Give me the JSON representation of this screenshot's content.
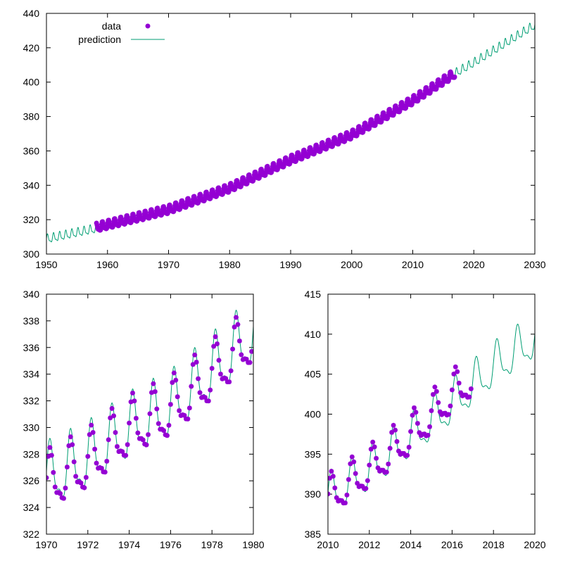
{
  "legend": {
    "data_label": "data",
    "prediction_label": "prediction",
    "position": "top-left"
  },
  "colors": {
    "data": "#9400d3",
    "prediction": "#009e73",
    "axes": "#000000",
    "background": "#ffffff"
  },
  "chart_data": [
    {
      "type": "line",
      "title": "",
      "xlabel": "",
      "ylabel": "",
      "xlim": [
        1950,
        2030
      ],
      "ylim": [
        300,
        440
      ],
      "grid": false,
      "x_ticks": [
        1950,
        1960,
        1970,
        1980,
        1990,
        2000,
        2010,
        2020,
        2030
      ],
      "y_ticks": [
        300,
        320,
        340,
        360,
        380,
        400,
        420,
        440
      ],
      "series": [
        {
          "name": "prediction",
          "style": "line",
          "x_range": [
            1950,
            2030
          ],
          "trend_points": [
            [
              1950,
              308.5
            ],
            [
              1958,
              314.5
            ],
            [
              1970,
              325.5
            ],
            [
              1980,
              338
            ],
            [
              1990,
              354.5
            ],
            [
              2000,
              369
            ],
            [
              2010,
              389
            ],
            [
              2017,
              405
            ],
            [
              2020,
              411
            ],
            [
              2030,
              433
            ]
          ],
          "seasonal_amplitude": 3.2
        },
        {
          "name": "data",
          "style": "points",
          "x_range": [
            1958.2,
            2016.9
          ],
          "trend_points": [
            [
              1958,
              315
            ],
            [
              1970,
              325.5
            ],
            [
              1980,
              338
            ],
            [
              1990,
              354.5
            ],
            [
              2000,
              369
            ],
            [
              2010,
              389
            ],
            [
              2017,
              405
            ]
          ],
          "seasonal_amplitude": 3.0
        }
      ]
    },
    {
      "type": "line",
      "title": "",
      "xlabel": "",
      "ylabel": "",
      "xlim": [
        1970,
        1980
      ],
      "ylim": [
        322,
        340
      ],
      "grid": false,
      "x_ticks": [
        1970,
        1972,
        1974,
        1976,
        1978,
        1980
      ],
      "y_ticks": [
        322,
        324,
        326,
        328,
        330,
        332,
        334,
        336,
        338,
        340
      ],
      "series": [
        {
          "name": "prediction",
          "style": "line",
          "x_range": [
            1970,
            1980
          ],
          "trend_points": [
            [
              1970,
              326.1
            ],
            [
              1972,
              327.6
            ],
            [
              1974,
              329.8
            ],
            [
              1976,
              331.4
            ],
            [
              1978,
              334.2
            ],
            [
              1980,
              337
            ]
          ],
          "seasonal_amplitude": 3.0
        },
        {
          "name": "data",
          "style": "points",
          "x_range": [
            1970.0,
            1979.96
          ],
          "trend_points": [
            [
              1970,
              325.7
            ],
            [
              1972,
              327.3
            ],
            [
              1974,
              329.8
            ],
            [
              1976,
              331.2
            ],
            [
              1978,
              333.9
            ],
            [
              1980,
              336.8
            ]
          ],
          "seasonal_amplitude": 2.7
        }
      ]
    },
    {
      "type": "line",
      "title": "",
      "xlabel": "",
      "ylabel": "",
      "xlim": [
        2010,
        2020
      ],
      "ylim": [
        385,
        415
      ],
      "grid": false,
      "x_ticks": [
        2010,
        2012,
        2014,
        2016,
        2018,
        2020
      ],
      "y_ticks": [
        385,
        390,
        395,
        400,
        405,
        410,
        415
      ],
      "series": [
        {
          "name": "prediction",
          "style": "line",
          "x_range": [
            2010,
            2020
          ],
          "trend_points": [
            [
              2010,
              389.5
            ],
            [
              2012,
              392.8
            ],
            [
              2014,
              397
            ],
            [
              2016,
              401.2
            ],
            [
              2018,
              405.8
            ],
            [
              2020,
              409.4
            ]
          ],
          "seasonal_amplitude": 3.4
        },
        {
          "name": "data",
          "style": "points",
          "x_range": [
            2010.0,
            2016.96
          ],
          "trend_points": [
            [
              2010,
              389.4
            ],
            [
              2012,
              393
            ],
            [
              2014,
              397.2
            ],
            [
              2016,
              402.4
            ],
            [
              2017,
              404.5
            ]
          ],
          "seasonal_amplitude": 3.2
        }
      ]
    }
  ]
}
